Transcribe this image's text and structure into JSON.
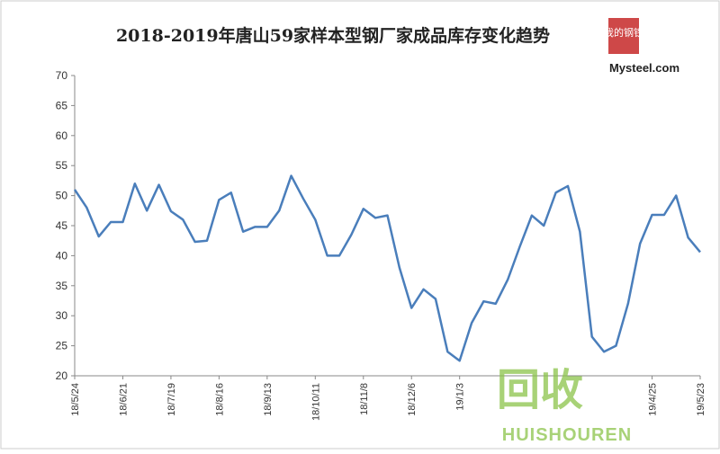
{
  "chart_data": {
    "type": "line",
    "title": "2018-2019年唐山59家样本型钢厂家成品库存变化趋势",
    "categories": [
      "18/5/24",
      null,
      null,
      null,
      "18/6/21",
      null,
      null,
      null,
      "18/7/19",
      null,
      null,
      null,
      "18/8/16",
      null,
      null,
      null,
      "18/9/13",
      null,
      null,
      null,
      "18/10/11",
      null,
      null,
      null,
      "18/11/8",
      null,
      null,
      null,
      "18/12/6",
      null,
      null,
      null,
      "19/1/3",
      null,
      null,
      null,
      null,
      null,
      null,
      null,
      null,
      null,
      null,
      null,
      null,
      null,
      null,
      null,
      "19/4/25",
      null,
      null,
      null,
      "19/5/23"
    ],
    "series": [
      {
        "color": "#4a7ebb",
        "values": [
          51,
          48,
          43.2,
          45.6,
          45.6,
          52,
          47.5,
          51.8,
          47.4,
          46,
          42.3,
          42.5,
          49.3,
          50.5,
          44,
          44.8,
          44.8,
          47.5,
          53.3,
          49.5,
          46,
          40,
          40,
          43.5,
          47.8,
          46.3,
          46.7,
          38,
          31.3,
          34.4,
          32.8,
          24,
          22.5,
          28.8,
          32.4,
          32,
          36,
          41.5,
          46.7,
          45,
          50.5,
          51.6,
          44,
          26.5,
          24,
          25,
          32,
          42,
          46.8,
          46.8,
          50,
          43,
          40.6
        ]
      }
    ],
    "ylim": [
      20,
      70
    ],
    "yticks": [
      20,
      25,
      30,
      35,
      40,
      45,
      50,
      55,
      60,
      65,
      70
    ],
    "grid": false
  },
  "logo": {
    "chars": "我的钢铁",
    "text": "Mysteel.com"
  },
  "watermark": {
    "text": "回收",
    "subtext": "HUISHOUREN"
  }
}
